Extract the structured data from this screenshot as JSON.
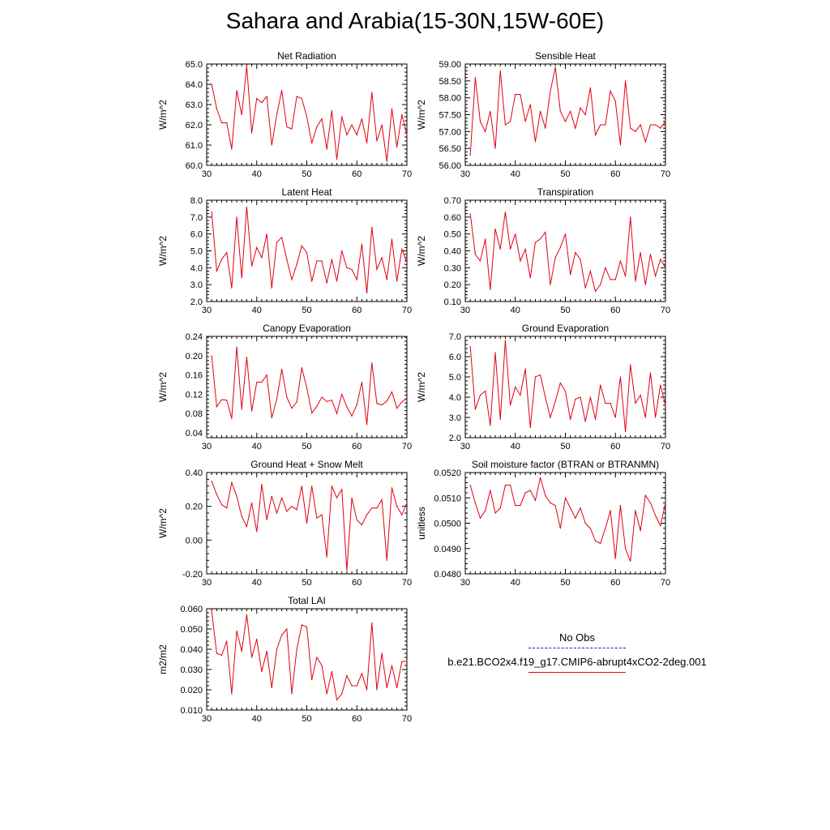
{
  "title": "Sahara and Arabia(15-30N,15W-60E)",
  "legend": [
    {
      "label": "No Obs",
      "color": "#20209a",
      "style": "dashed"
    },
    {
      "label": "b.e21.BCO2x4.f19_g17.CMIP6-abrupt4xCO2-2deg.001",
      "color": "#e0000f",
      "style": "solid"
    }
  ],
  "chart_data": [
    {
      "type": "line",
      "title": "Net Radiation",
      "ylabel": "W/m^2",
      "xlim": [
        30,
        70
      ],
      "xticks": [
        30,
        40,
        50,
        60,
        70
      ],
      "x_start": 31,
      "ylim": [
        60,
        65
      ],
      "yticks": [
        "60.0",
        "61.0",
        "62.0",
        "63.0",
        "64.0",
        "65.0"
      ],
      "series": [
        {
          "color": "#e0000f",
          "values": [
            64.0,
            62.8,
            62.1,
            62.1,
            60.8,
            63.7,
            62.5,
            64.9,
            61.6,
            63.3,
            63.1,
            63.4,
            61.0,
            62.5,
            63.7,
            61.9,
            61.8,
            63.4,
            63.3,
            62.4,
            61.1,
            61.9,
            62.3,
            60.8,
            62.7,
            60.3,
            62.4,
            61.5,
            62.0,
            61.5,
            62.3,
            61.1,
            63.6,
            61.2,
            62.0,
            60.2,
            62.8,
            60.9,
            62.5,
            61.5
          ]
        }
      ]
    },
    {
      "type": "line",
      "title": "Sensible Heat",
      "ylabel": "W/m^2",
      "xlim": [
        30,
        70
      ],
      "xticks": [
        30,
        40,
        50,
        60,
        70
      ],
      "x_start": 31,
      "ylim": [
        56,
        59
      ],
      "yticks": [
        "56.00",
        "56.50",
        "57.00",
        "57.50",
        "58.00",
        "58.50",
        "59.00"
      ],
      "series": [
        {
          "color": "#e0000f",
          "values": [
            56.3,
            58.6,
            57.3,
            57.0,
            57.6,
            56.5,
            58.8,
            57.2,
            57.3,
            58.1,
            58.1,
            57.3,
            57.8,
            56.7,
            57.6,
            57.1,
            58.2,
            58.9,
            57.6,
            57.3,
            57.6,
            57.1,
            57.7,
            57.5,
            58.3,
            56.9,
            57.2,
            57.2,
            58.2,
            57.9,
            56.6,
            58.5,
            57.1,
            57.0,
            57.2,
            56.7,
            57.2,
            57.2,
            57.1,
            57.3
          ]
        }
      ]
    },
    {
      "type": "line",
      "title": "Latent Heat",
      "ylabel": "W/m^2",
      "xlim": [
        30,
        70
      ],
      "xticks": [
        30,
        40,
        50,
        60,
        70
      ],
      "x_start": 31,
      "ylim": [
        2,
        8
      ],
      "yticks": [
        "2.0",
        "3.0",
        "4.0",
        "5.0",
        "6.0",
        "7.0",
        "8.0"
      ],
      "series": [
        {
          "color": "#e0000f",
          "values": [
            7.3,
            3.8,
            4.5,
            4.9,
            2.8,
            7.0,
            3.4,
            7.6,
            4.1,
            5.2,
            4.6,
            6.0,
            2.8,
            5.5,
            5.8,
            4.5,
            3.3,
            4.2,
            5.3,
            4.9,
            3.2,
            4.4,
            4.4,
            3.1,
            4.5,
            3.2,
            5.0,
            4.0,
            3.9,
            3.3,
            5.4,
            2.5,
            6.4,
            3.9,
            4.6,
            3.3,
            5.7,
            3.2,
            5.1,
            4.3
          ]
        }
      ]
    },
    {
      "type": "line",
      "title": "Transpiration",
      "ylabel": "W/m^2",
      "xlim": [
        30,
        70
      ],
      "xticks": [
        30,
        40,
        50,
        60,
        70
      ],
      "x_start": 31,
      "ylim": [
        0.1,
        0.7
      ],
      "yticks": [
        "0.10",
        "0.20",
        "0.30",
        "0.40",
        "0.50",
        "0.60",
        "0.70"
      ],
      "series": [
        {
          "color": "#e0000f",
          "values": [
            0.62,
            0.38,
            0.34,
            0.47,
            0.17,
            0.53,
            0.41,
            0.63,
            0.41,
            0.5,
            0.34,
            0.41,
            0.24,
            0.45,
            0.47,
            0.51,
            0.2,
            0.36,
            0.42,
            0.5,
            0.26,
            0.39,
            0.35,
            0.18,
            0.28,
            0.16,
            0.2,
            0.3,
            0.23,
            0.23,
            0.34,
            0.25,
            0.6,
            0.22,
            0.39,
            0.2,
            0.38,
            0.25,
            0.35,
            0.3
          ]
        }
      ]
    },
    {
      "type": "line",
      "title": "Canopy Evaporation",
      "ylabel": "W/m^2",
      "xlim": [
        30,
        70
      ],
      "xticks": [
        30,
        40,
        50,
        60,
        70
      ],
      "x_start": 31,
      "ylim": [
        0.03,
        0.24
      ],
      "yticks": [
        "0.04",
        "0.08",
        "0.12",
        "0.16",
        "0.20",
        "0.24"
      ],
      "series": [
        {
          "color": "#e0000f",
          "values": [
            0.2,
            0.094,
            0.109,
            0.108,
            0.07,
            0.218,
            0.089,
            0.197,
            0.085,
            0.145,
            0.145,
            0.16,
            0.071,
            0.11,
            0.172,
            0.114,
            0.091,
            0.104,
            0.175,
            0.134,
            0.081,
            0.095,
            0.114,
            0.105,
            0.108,
            0.08,
            0.12,
            0.094,
            0.075,
            0.098,
            0.145,
            0.057,
            0.185,
            0.101,
            0.098,
            0.106,
            0.125,
            0.091,
            0.104,
            0.112
          ]
        }
      ]
    },
    {
      "type": "line",
      "title": "Ground Evaporation",
      "ylabel": "W/m^2",
      "xlim": [
        30,
        70
      ],
      "xticks": [
        30,
        40,
        50,
        60,
        70
      ],
      "x_start": 31,
      "ylim": [
        2,
        7
      ],
      "yticks": [
        "2.0",
        "3.0",
        "4.0",
        "5.0",
        "6.0",
        "7.0"
      ],
      "series": [
        {
          "color": "#e0000f",
          "values": [
            6.5,
            3.4,
            4.1,
            4.3,
            2.6,
            6.2,
            2.9,
            6.8,
            3.6,
            4.5,
            4.1,
            5.4,
            2.5,
            5.0,
            5.1,
            4.0,
            3.0,
            3.8,
            4.7,
            4.3,
            2.9,
            3.9,
            4.0,
            2.8,
            4.0,
            2.9,
            4.6,
            3.7,
            3.7,
            3.0,
            5.0,
            2.3,
            5.6,
            3.7,
            4.1,
            3.0,
            5.2,
            3.0,
            4.6,
            3.6
          ]
        }
      ]
    },
    {
      "type": "line",
      "title": "Ground Heat + Snow Melt",
      "ylabel": "W/m^2",
      "xlim": [
        30,
        70
      ],
      "xticks": [
        30,
        40,
        50,
        60,
        70
      ],
      "x_start": 31,
      "ylim": [
        -0.2,
        0.4
      ],
      "yticks": [
        "-0.20",
        "0.00",
        "0.20",
        "0.40"
      ],
      "series": [
        {
          "color": "#e0000f",
          "values": [
            0.35,
            0.27,
            0.21,
            0.19,
            0.34,
            0.26,
            0.14,
            0.08,
            0.22,
            0.05,
            0.33,
            0.12,
            0.26,
            0.16,
            0.25,
            0.17,
            0.2,
            0.18,
            0.32,
            0.1,
            0.32,
            0.13,
            0.15,
            -0.1,
            0.32,
            0.25,
            0.3,
            -0.18,
            0.25,
            0.12,
            0.09,
            0.15,
            0.19,
            0.19,
            0.24,
            -0.12,
            0.31,
            0.2,
            0.15,
            0.22
          ]
        }
      ]
    },
    {
      "type": "line",
      "title": "Soil moisture factor (BTRAN or BTRANMN)",
      "ylabel": "unitless",
      "xlim": [
        30,
        70
      ],
      "xticks": [
        30,
        40,
        50,
        60,
        70
      ],
      "x_start": 31,
      "ylim": [
        0.048,
        0.052
      ],
      "yticks": [
        "0.0480",
        "0.0490",
        "0.0500",
        "0.0510",
        "0.0520"
      ],
      "series": [
        {
          "color": "#e0000f",
          "values": [
            0.0515,
            0.0508,
            0.0502,
            0.0505,
            0.0513,
            0.0504,
            0.0506,
            0.0515,
            0.0515,
            0.0507,
            0.0507,
            0.0512,
            0.0513,
            0.0509,
            0.0518,
            0.0511,
            0.0508,
            0.0507,
            0.0498,
            0.051,
            0.0506,
            0.0502,
            0.0506,
            0.05,
            0.0498,
            0.0493,
            0.0492,
            0.0498,
            0.0505,
            0.0486,
            0.0507,
            0.049,
            0.0485,
            0.0505,
            0.0497,
            0.0511,
            0.0508,
            0.0503,
            0.0499,
            0.0508
          ]
        }
      ]
    },
    {
      "type": "line",
      "title": "Total LAI",
      "ylabel": "m2/m2",
      "xlim": [
        30,
        70
      ],
      "xticks": [
        30,
        40,
        50,
        60,
        70
      ],
      "x_start": 31,
      "ylim": [
        0.01,
        0.06
      ],
      "yticks": [
        "0.010",
        "0.020",
        "0.030",
        "0.040",
        "0.050",
        "0.060"
      ],
      "series": [
        {
          "color": "#e0000f",
          "values": [
            0.059,
            0.038,
            0.037,
            0.044,
            0.018,
            0.049,
            0.039,
            0.057,
            0.036,
            0.045,
            0.029,
            0.039,
            0.021,
            0.04,
            0.047,
            0.05,
            0.018,
            0.04,
            0.052,
            0.051,
            0.025,
            0.036,
            0.032,
            0.018,
            0.029,
            0.015,
            0.018,
            0.027,
            0.022,
            0.022,
            0.028,
            0.02,
            0.053,
            0.02,
            0.038,
            0.021,
            0.032,
            0.021,
            0.034,
            0.034
          ]
        }
      ]
    }
  ]
}
